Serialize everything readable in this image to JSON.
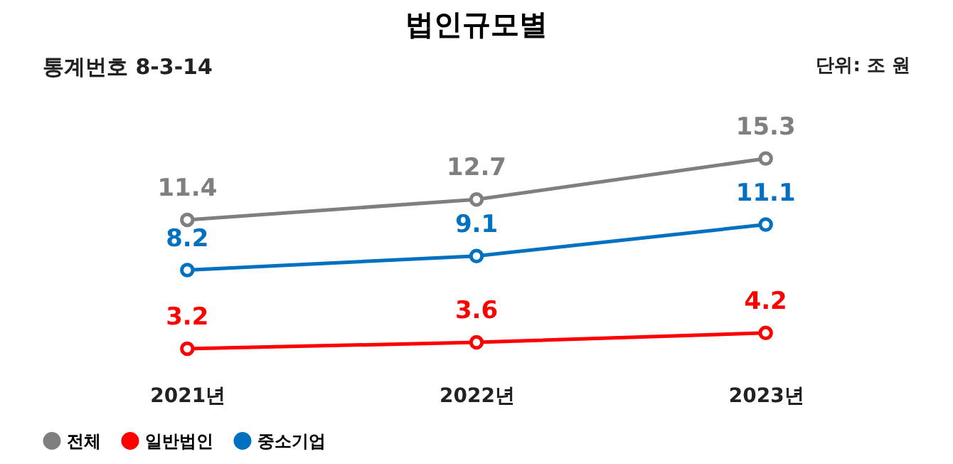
{
  "chart_data": {
    "type": "line",
    "title": "법인규모별",
    "annotations": [
      "통계번호 8-3-14",
      "단위: 조 원"
    ],
    "categories": [
      "2021년",
      "2022년",
      "2023년"
    ],
    "series": [
      {
        "name": "전체",
        "color": "#7f7f7f",
        "values": [
          11.4,
          12.7,
          15.3
        ]
      },
      {
        "name": "일반법인",
        "color": "#ff0000",
        "values": [
          3.2,
          3.6,
          4.2
        ]
      },
      {
        "name": "중소기업",
        "color": "#0070c0",
        "values": [
          8.2,
          9.1,
          11.1
        ]
      }
    ],
    "data_labels": true,
    "marker": "circle",
    "line_style": "solid",
    "legend": "bottom",
    "grid": false
  }
}
